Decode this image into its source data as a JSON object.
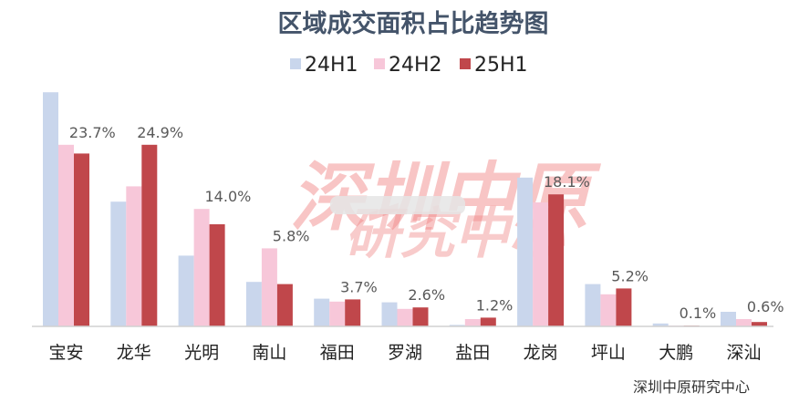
{
  "chart_data": {
    "type": "bar",
    "title": "区域成交面积占比趋势图",
    "categories": [
      "宝安",
      "龙华",
      "光明",
      "南山",
      "福田",
      "罗湖",
      "盐田",
      "龙岗",
      "坪山",
      "大鹏",
      "深汕"
    ],
    "series": [
      {
        "name": "24H1",
        "color": "#c9d6ec",
        "values": [
          32.1,
          17.1,
          9.7,
          6.1,
          3.8,
          3.3,
          0.2,
          20.4,
          5.8,
          0.4,
          2.0
        ]
      },
      {
        "name": "24H2",
        "color": "#f7c7d9",
        "values": [
          24.9,
          19.2,
          16.1,
          10.7,
          3.4,
          2.4,
          1.0,
          17.0,
          4.4,
          0.1,
          1.0
        ]
      },
      {
        "name": "25H1",
        "color": "#c0474b",
        "values": [
          23.7,
          24.9,
          14.0,
          5.8,
          3.7,
          2.6,
          1.2,
          18.1,
          5.2,
          0.1,
          0.6
        ]
      }
    ],
    "data_labels": [
      "23.7%",
      "24.9%",
      "14.0%",
      "5.8%",
      "3.7%",
      "2.6%",
      "1.2%",
      "18.1%",
      "5.2%",
      "0.1%",
      "0.6%"
    ],
    "ylim": [
      0,
      32.5
    ],
    "legend_position": "top",
    "grid": false
  },
  "source": "深圳中原研究中心",
  "watermark": {
    "line1": "深圳中原",
    "line2": "研究中心"
  }
}
